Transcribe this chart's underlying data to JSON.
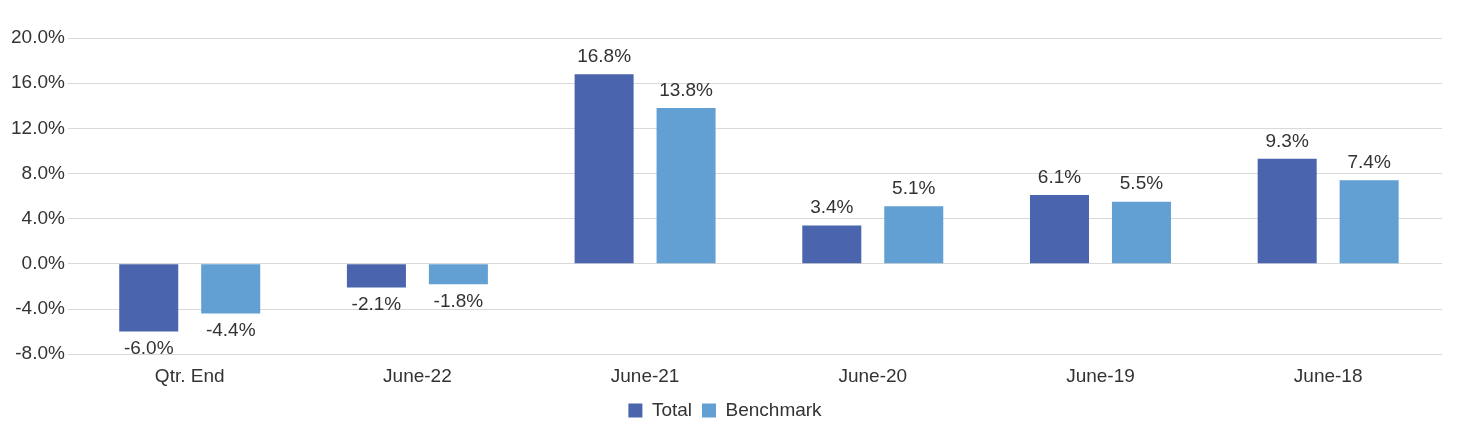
{
  "chart_data": {
    "type": "bar",
    "categories": [
      "Qtr. End",
      "June-22",
      "June-21",
      "June-20",
      "June-19",
      "June-18"
    ],
    "series": [
      {
        "name": "Total",
        "color": "#4a65ad",
        "values": [
          -6.0,
          -2.1,
          16.8,
          3.4,
          6.1,
          9.3
        ],
        "value_labels": [
          "-6.0%",
          "-2.1%",
          "16.8%",
          "3.4%",
          "6.1%",
          "9.3%"
        ]
      },
      {
        "name": "Benchmark",
        "color": "#629fd3",
        "values": [
          -4.4,
          -1.8,
          13.8,
          5.1,
          5.5,
          7.4
        ],
        "value_labels": [
          "-4.4%",
          "-1.8%",
          "13.8%",
          "5.1%",
          "5.5%",
          "7.4%"
        ]
      }
    ],
    "ylim": [
      -8,
      20
    ],
    "yticks": [
      {
        "value": -8,
        "label": "-8.0%"
      },
      {
        "value": -4,
        "label": "-4.0%"
      },
      {
        "value": 0,
        "label": "0.0%"
      },
      {
        "value": 4,
        "label": "4.0%"
      },
      {
        "value": 8,
        "label": "8.0%"
      },
      {
        "value": 12,
        "label": "12.0%"
      },
      {
        "value": 16,
        "label": "16.0%"
      },
      {
        "value": 20,
        "label": "20.0%"
      }
    ],
    "grid": "y",
    "legend": "bottom"
  }
}
